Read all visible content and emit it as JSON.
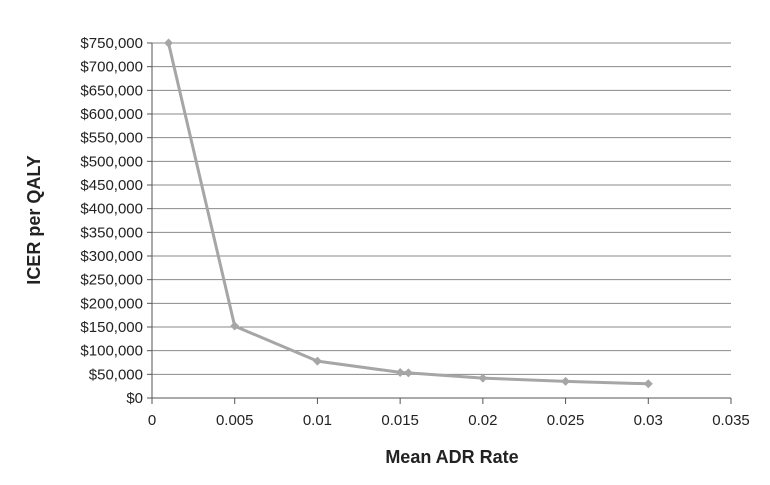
{
  "chart_data": {
    "type": "line",
    "xlabel": "Mean ADR Rate",
    "ylabel": "ICER per QALY",
    "xlim": [
      0,
      0.035
    ],
    "ylim": [
      0,
      750000
    ],
    "x_ticks": [
      0,
      0.005,
      0.01,
      0.015,
      0.02,
      0.025,
      0.03,
      0.035
    ],
    "x_tick_labels": [
      "0",
      "0.005",
      "0.01",
      "0.015",
      "0.02",
      "0.025",
      "0.03",
      "0.035"
    ],
    "y_ticks": [
      0,
      50000,
      100000,
      150000,
      200000,
      250000,
      300000,
      350000,
      400000,
      450000,
      500000,
      550000,
      600000,
      650000,
      700000,
      750000
    ],
    "y_tick_labels": [
      "$0",
      "$50,000",
      "$100,000",
      "$150,000",
      "$200,000",
      "$250,000",
      "$300,000",
      "$350,000",
      "$400,000",
      "$450,000",
      "$500,000",
      "$550,000",
      "$600,000",
      "$650,000",
      "$700,000",
      "$750,000"
    ],
    "grid": "horizontal",
    "legend": "none",
    "series": [
      {
        "color": "#a6a6a6",
        "marker": "diamond",
        "points": [
          {
            "x": 0.001,
            "y": 750000
          },
          {
            "x": 0.005,
            "y": 152000
          },
          {
            "x": 0.01,
            "y": 78000
          },
          {
            "x": 0.015,
            "y": 54000
          },
          {
            "x": 0.0155,
            "y": 53000
          },
          {
            "x": 0.02,
            "y": 42000
          },
          {
            "x": 0.025,
            "y": 35000
          },
          {
            "x": 0.03,
            "y": 30000
          }
        ]
      }
    ]
  }
}
